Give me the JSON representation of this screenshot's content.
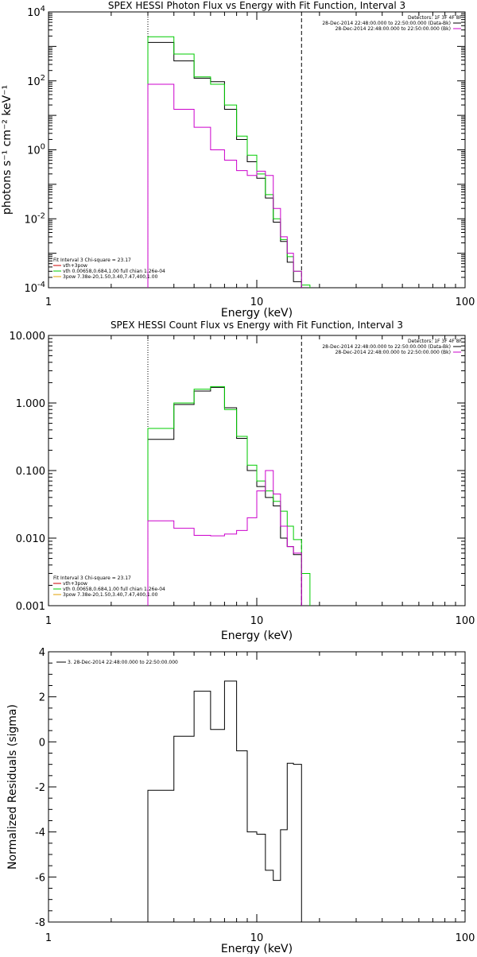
{
  "chart_data": [
    {
      "type": "line",
      "title": "SPEX HESSI Photon Flux vs Energy with Fit Function, Interval 3",
      "xlabel": "Energy (keV)",
      "ylabel": "photons s⁻¹ cm⁻² keV⁻¹",
      "xscale": "log",
      "yscale": "log",
      "xlim": [
        1,
        100
      ],
      "ylim": [
        0.0001,
        10000
      ],
      "x_ticks": [
        "1",
        "10",
        "100"
      ],
      "y_ticks": [
        {
          "v": 0.0001,
          "m": "10",
          "e": "-4"
        },
        {
          "v": 0.01,
          "m": "10",
          "e": "-2"
        },
        {
          "v": 1,
          "m": "10",
          "e": "0"
        },
        {
          "v": 100,
          "m": "10",
          "e": "2"
        },
        {
          "v": 10000,
          "m": "10",
          "e": "4"
        }
      ],
      "vlines": [
        {
          "x": 3.0,
          "style": "dotted"
        },
        {
          "x": 16.4,
          "style": "dashed"
        }
      ],
      "legend_header": "Detectors: 1F 3F 4F 8F",
      "legend": [
        {
          "label": "28-Dec-2014 22:48:00.000 to 22:50:00.000 (Data-Bk)",
          "color": "#000000"
        },
        {
          "label": "28-Dec-2014 22:48:00.000 to 22:50:00.000 (Bk)",
          "color": "#cc00cc"
        }
      ],
      "fit_info": [
        {
          "label": "Fit Interval 3   Chi-square = 23.17",
          "color": "#000000"
        },
        {
          "label": "vth+3pow",
          "color": "#cc0000"
        },
        {
          "label": "vth 0.00658,0.684,1.00  full chian 1.26e-04",
          "color": "#00cc00"
        },
        {
          "label": "3pow 7.38e-20,1.50,3.40,7.47,400,1.00",
          "color": "#e0a000"
        }
      ],
      "edges": [
        3.0,
        4.0,
        5.0,
        6.0,
        7.0,
        8.0,
        9.0,
        10.0,
        11.0,
        12.0,
        13.0,
        14.0,
        15.0,
        16.4,
        18.0
      ],
      "series": [
        {
          "color": "#000000",
          "values": [
            1300,
            380,
            120,
            95,
            15,
            2.0,
            0.45,
            0.15,
            0.04,
            0.008,
            0.0022,
            0.00055,
            0.00015
          ]
        },
        {
          "color": "#00cc00",
          "values": [
            1900,
            600,
            130,
            80,
            20,
            2.5,
            0.7,
            0.2,
            0.05,
            0.01,
            0.0025,
            0.0008,
            0.0003,
            0.00012
          ]
        },
        {
          "color": "#cc00cc",
          "values": [
            80,
            15,
            4.5,
            1.0,
            0.5,
            0.25,
            0.18,
            0.24,
            0.18,
            0.02,
            0.003,
            0.001,
            0.0003
          ]
        }
      ]
    },
    {
      "type": "line",
      "title": "SPEX HESSI Count Flux vs Energy with Fit Function, Interval 3",
      "xlabel": "Energy (keV)",
      "ylabel": "",
      "xscale": "log",
      "yscale": "log",
      "xlim": [
        1,
        100
      ],
      "ylim": [
        0.001,
        10
      ],
      "x_ticks": [
        "1",
        "10",
        "100"
      ],
      "y_ticks": [
        {
          "v": 0.001,
          "label": "0.001"
        },
        {
          "v": 0.01,
          "label": "0.010"
        },
        {
          "v": 0.1,
          "label": "0.100"
        },
        {
          "v": 1,
          "label": "1.000"
        },
        {
          "v": 10,
          "label": "10.000"
        }
      ],
      "vlines": [
        {
          "x": 3.0,
          "style": "dotted"
        },
        {
          "x": 16.4,
          "style": "dashed"
        }
      ],
      "legend_header": "Detectors: 1F 3F 4F 8F",
      "legend": [
        {
          "label": "28-Dec-2014 22:48:00.000 to 22:50:00.000 (Data-Bk)",
          "color": "#000000"
        },
        {
          "label": "28-Dec-2014 22:48:00.000 to 22:50:00.000 (Bk)",
          "color": "#cc00cc"
        }
      ],
      "fit_info": [
        {
          "label": "Fit Interval 3   Chi-square = 23.17",
          "color": "#000000"
        },
        {
          "label": "vth+3pow",
          "color": "#cc0000"
        },
        {
          "label": "vth 0.00658,0.684,1.00  full chian 1.26e-04",
          "color": "#00cc00"
        },
        {
          "label": "3pow 7.38e-20,1.50,3.40,7.47,400,1.00",
          "color": "#e0a000"
        }
      ],
      "edges": [
        3.0,
        4.0,
        5.0,
        6.0,
        7.0,
        8.0,
        9.0,
        10.0,
        11.0,
        12.0,
        13.0,
        14.0,
        15.0,
        16.4,
        18.0
      ],
      "series": [
        {
          "color": "#000000",
          "values": [
            0.29,
            0.95,
            1.5,
            1.7,
            0.85,
            0.3,
            0.1,
            0.058,
            0.04,
            0.03,
            0.01,
            0.0075,
            0.0057
          ]
        },
        {
          "color": "#00cc00",
          "values": [
            0.42,
            1.0,
            1.6,
            1.75,
            0.8,
            0.32,
            0.12,
            0.07,
            0.05,
            0.035,
            0.025,
            0.015,
            0.0095,
            0.003
          ]
        },
        {
          "color": "#cc00cc",
          "values": [
            0.018,
            0.014,
            0.011,
            0.0108,
            0.0115,
            0.013,
            0.02,
            0.05,
            0.1,
            0.045,
            0.015,
            0.0075,
            0.006
          ]
        }
      ]
    },
    {
      "type": "line",
      "title": "",
      "xlabel": "Energy (keV)",
      "ylabel": "Normalized Residuals (sigma)",
      "xscale": "log",
      "yscale": "linear",
      "xlim": [
        1,
        100
      ],
      "ylim": [
        -8,
        4
      ],
      "x_ticks": [
        "1",
        "10",
        "100"
      ],
      "y_ticks": [
        {
          "v": 4,
          "label": "4"
        },
        {
          "v": 2,
          "label": "2"
        },
        {
          "v": 0,
          "label": "0"
        },
        {
          "v": -2,
          "label": "-2"
        },
        {
          "v": -4,
          "label": "-4"
        },
        {
          "v": -6,
          "label": "-6"
        },
        {
          "v": -8,
          "label": "-8"
        }
      ],
      "legend": [
        {
          "label": "3. 28-Dec-2014 22:48:00.000 to 22:50:00.000",
          "color": "#000000"
        }
      ],
      "edges": [
        3.0,
        4.0,
        5.0,
        6.0,
        7.0,
        8.0,
        9.0,
        10.0,
        11.0,
        12.0,
        13.0,
        14.0,
        15.0,
        16.4
      ],
      "series": [
        {
          "color": "#000000",
          "values": [
            -2.15,
            0.25,
            2.25,
            0.55,
            2.7,
            -0.4,
            -4.0,
            -4.1,
            -5.7,
            -6.15,
            -3.9,
            -0.95,
            -1.0
          ]
        }
      ]
    }
  ]
}
